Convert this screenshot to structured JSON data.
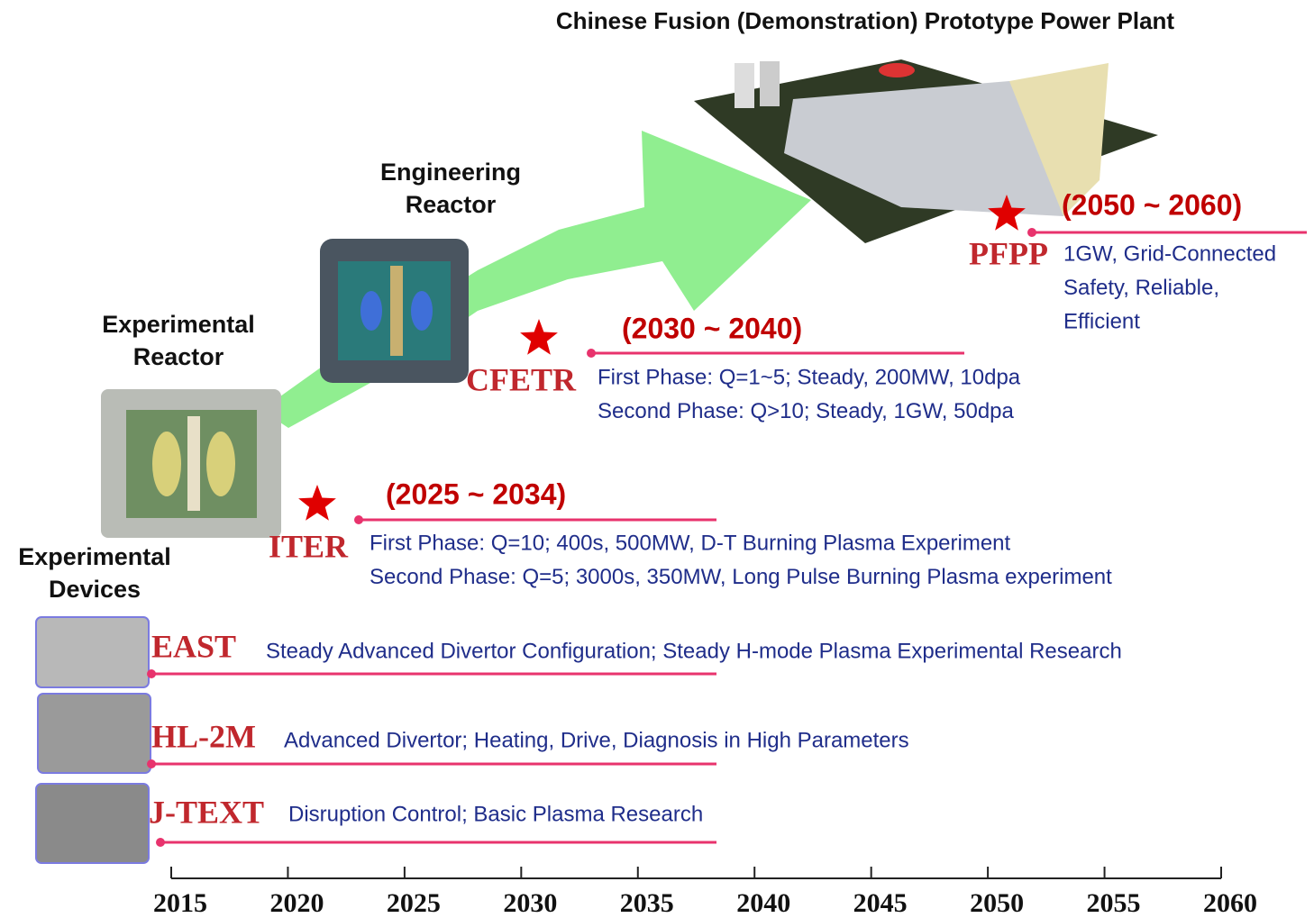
{
  "title": "Chinese Fusion (Demonstration) Prototype Power Plant",
  "stage_labels": {
    "engineering": [
      "Engineering",
      "Reactor"
    ],
    "experimental_reactor": [
      "Experimental",
      "Reactor"
    ],
    "experimental_devices": [
      "Experimental",
      "Devices"
    ]
  },
  "projects": [
    {
      "name": "PFPP",
      "period": "(2050 ~ 2060)",
      "details": [
        "1GW, Grid-Connected",
        "Safety, Reliable,",
        "Efficient"
      ]
    },
    {
      "name": "CFETR",
      "period": "(2030 ~ 2040)",
      "details": [
        "First Phase: Q=1~5; Steady, 200MW, 10dpa",
        "Second Phase: Q>10; Steady, 1GW, 50dpa"
      ]
    },
    {
      "name": "ITER",
      "period": "(2025 ~ 2034)",
      "details": [
        "First Phase: Q=10; 400s, 500MW, D-T Burning Plasma Experiment",
        "Second Phase: Q=5; 3000s, 350MW, Long Pulse Burning Plasma experiment"
      ]
    }
  ],
  "devices": [
    {
      "name": "EAST",
      "description": "Steady Advanced Divertor Configuration; Steady H-mode Plasma Experimental Research"
    },
    {
      "name": "HL-2M",
      "description": "Advanced Divertor; Heating, Drive, Diagnosis in High Parameters"
    },
    {
      "name": "J-TEXT",
      "description": "Disruption Control; Basic Plasma Research"
    }
  ],
  "timeline": {
    "ticks": [
      2015,
      2020,
      2025,
      2030,
      2035,
      2040,
      2045,
      2050,
      2055,
      2060
    ]
  }
}
